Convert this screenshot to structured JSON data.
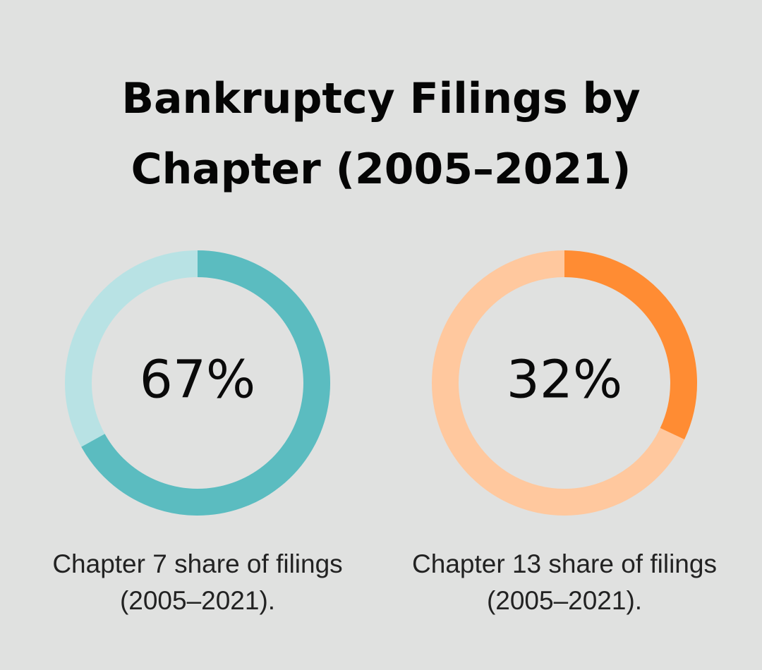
{
  "title": "Bankruptcy Filings by Chapter (2005–2021)",
  "chart_data": [
    {
      "type": "donut",
      "values": [
        67
      ],
      "value_labels": [
        "67%"
      ],
      "caption": "Chapter 7 share of filings (2005–2021).",
      "color": "#5bbcc0",
      "track_color": "#b8e2e4"
    },
    {
      "type": "donut",
      "values": [
        32
      ],
      "value_labels": [
        "32%"
      ],
      "caption": "Chapter 13 share of filings (2005–2021).",
      "color": "#ff8c33",
      "track_color": "#ffc89e"
    }
  ]
}
